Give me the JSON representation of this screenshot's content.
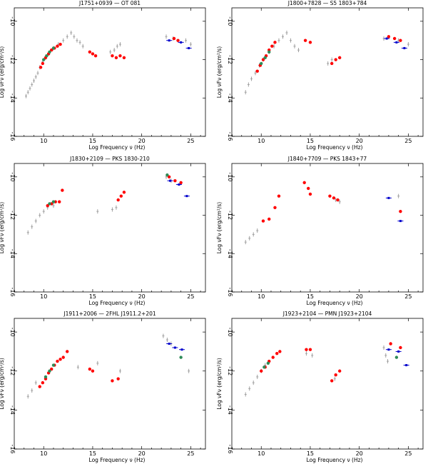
{
  "colors": {
    "gray": "#a0a0a0",
    "red": "#ff0000",
    "green": "#2e8b57",
    "blue": "#0000cc"
  },
  "chart_data": [
    {
      "type": "scatter",
      "title": "J1751+0939 — OT 081",
      "xlabel": "Log Frequency ν (Hz)",
      "ylabel": "Log νFν (erg/cm²/s)",
      "xlim": [
        7,
        26.5
      ],
      "ylim": [
        -16,
        -9.3
      ],
      "xticks": [
        10,
        15,
        20,
        25
      ],
      "yticks": [
        -10,
        -12,
        -14,
        -16
      ],
      "series": [
        {
          "name": "archival",
          "color": "#a0a0a0",
          "points": [
            [
              8.2,
              -13.9
            ],
            [
              8.4,
              -13.7
            ],
            [
              8.6,
              -13.5
            ],
            [
              8.8,
              -13.3
            ],
            [
              9.0,
              -13.1
            ],
            [
              9.2,
              -12.9
            ],
            [
              9.4,
              -12.7
            ],
            [
              9.6,
              -12.4
            ],
            [
              9.9,
              -12.1
            ],
            [
              10.2,
              -11.9
            ],
            [
              10.5,
              -11.7
            ],
            [
              11.0,
              -11.4
            ],
            [
              11.5,
              -11.2
            ],
            [
              12.0,
              -11.0
            ],
            [
              12.4,
              -10.8
            ],
            [
              12.8,
              -10.6
            ],
            [
              13.1,
              -10.8
            ],
            [
              13.4,
              -11.0
            ],
            [
              13.7,
              -11.1
            ],
            [
              14.0,
              -11.3
            ],
            [
              16.8,
              -11.6
            ],
            [
              17.2,
              -11.5
            ],
            [
              17.5,
              -11.3
            ],
            [
              17.8,
              -11.2
            ],
            [
              22.5,
              -10.8
            ],
            [
              23.2,
              -10.9
            ],
            [
              24.5,
              -11.0
            ],
            [
              25.0,
              -11.2
            ]
          ]
        },
        {
          "name": "red",
          "color": "#ff0000",
          "points": [
            [
              9.7,
              -12.4
            ],
            [
              9.9,
              -12.2
            ],
            [
              10.2,
              -11.9
            ],
            [
              10.5,
              -11.7
            ],
            [
              10.8,
              -11.5
            ],
            [
              11.1,
              -11.4
            ],
            [
              11.4,
              -11.3
            ],
            [
              11.7,
              -11.2
            ],
            [
              14.7,
              -11.6
            ],
            [
              15.0,
              -11.7
            ],
            [
              15.3,
              -11.8
            ],
            [
              17.0,
              -11.8
            ],
            [
              17.4,
              -11.9
            ],
            [
              17.8,
              -11.8
            ],
            [
              18.2,
              -11.9
            ],
            [
              23.3,
              -10.9
            ],
            [
              23.7,
              -11.0
            ]
          ]
        },
        {
          "name": "green",
          "color": "#2e8b57",
          "points": [
            [
              10.0,
              -12.0
            ],
            [
              10.3,
              -11.8
            ],
            [
              10.6,
              -11.6
            ],
            [
              11.0,
              -11.4
            ]
          ]
        },
        {
          "name": "blue",
          "color": "#0000cc",
          "points": [
            [
              22.8,
              -11.0
            ],
            [
              24.0,
              -11.1
            ],
            [
              24.8,
              -11.4
            ]
          ]
        }
      ]
    },
    {
      "type": "scatter",
      "title": "J1800+7828 — S5 1803+784",
      "xlabel": "Log Frequency ν (Hz)",
      "ylabel": "Log νFν (erg/cm²/s)",
      "xlim": [
        7,
        26.5
      ],
      "ylim": [
        -16,
        -9.3
      ],
      "xticks": [
        10,
        15,
        20,
        25
      ],
      "yticks": [
        -10,
        -12,
        -14,
        -16
      ],
      "series": [
        {
          "name": "archival",
          "color": "#a0a0a0",
          "points": [
            [
              8.4,
              -13.7
            ],
            [
              8.7,
              -13.3
            ],
            [
              9.0,
              -13.0
            ],
            [
              9.4,
              -12.7
            ],
            [
              9.8,
              -12.3
            ],
            [
              10.2,
              -12.0
            ],
            [
              10.8,
              -11.6
            ],
            [
              11.3,
              -11.3
            ],
            [
              11.8,
              -11.0
            ],
            [
              12.2,
              -10.8
            ],
            [
              12.6,
              -10.6
            ],
            [
              13.0,
              -11.0
            ],
            [
              13.4,
              -11.3
            ],
            [
              13.8,
              -11.5
            ],
            [
              16.8,
              -12.2
            ],
            [
              17.2,
              -12.0
            ],
            [
              22.5,
              -10.9
            ],
            [
              24.0,
              -11.0
            ],
            [
              25.0,
              -11.2
            ]
          ]
        },
        {
          "name": "red",
          "color": "#ff0000",
          "points": [
            [
              9.6,
              -12.6
            ],
            [
              9.9,
              -12.3
            ],
            [
              10.2,
              -12.0
            ],
            [
              10.5,
              -11.8
            ],
            [
              10.8,
              -11.5
            ],
            [
              11.1,
              -11.3
            ],
            [
              11.4,
              -11.1
            ],
            [
              14.5,
              -11.0
            ],
            [
              15.0,
              -11.1
            ],
            [
              17.2,
              -12.2
            ],
            [
              17.6,
              -12.0
            ],
            [
              18.0,
              -11.9
            ],
            [
              23.0,
              -10.8
            ],
            [
              23.6,
              -10.9
            ],
            [
              24.2,
              -11.0
            ]
          ]
        },
        {
          "name": "green",
          "color": "#2e8b57",
          "points": [
            [
              10.0,
              -12.2
            ],
            [
              10.4,
              -11.9
            ],
            [
              10.8,
              -11.6
            ]
          ]
        },
        {
          "name": "blue",
          "color": "#0000cc",
          "points": [
            [
              22.8,
              -10.9
            ],
            [
              23.8,
              -11.1
            ],
            [
              24.6,
              -11.4
            ]
          ]
        }
      ]
    },
    {
      "type": "scatter",
      "title": "J1830+2109 — PKS 1830-210",
      "xlabel": "Log Frequency ν (Hz)",
      "ylabel": "Log νFν (erg/cm²/s)",
      "xlim": [
        7,
        26.5
      ],
      "ylim": [
        -16,
        -9.3
      ],
      "xticks": [
        10,
        15,
        20,
        25
      ],
      "yticks": [
        -10,
        -12,
        -14,
        -16
      ],
      "series": [
        {
          "name": "archival",
          "color": "#a0a0a0",
          "points": [
            [
              8.4,
              -12.9
            ],
            [
              8.8,
              -12.6
            ],
            [
              9.2,
              -12.3
            ],
            [
              9.6,
              -12.0
            ],
            [
              10.0,
              -11.8
            ],
            [
              10.4,
              -11.6
            ],
            [
              11.0,
              -11.5
            ],
            [
              15.5,
              -11.8
            ],
            [
              17.0,
              -11.7
            ],
            [
              17.4,
              -11.6
            ],
            [
              22.5,
              -10.0
            ],
            [
              23.0,
              -10.2
            ]
          ]
        },
        {
          "name": "red",
          "color": "#ff0000",
          "points": [
            [
              10.4,
              -11.5
            ],
            [
              10.8,
              -11.4
            ],
            [
              11.2,
              -11.3
            ],
            [
              11.6,
              -11.3
            ],
            [
              11.9,
              -10.7
            ],
            [
              17.6,
              -11.2
            ],
            [
              17.9,
              -11.0
            ],
            [
              18.2,
              -10.8
            ],
            [
              22.8,
              -10.0
            ],
            [
              23.4,
              -10.2
            ],
            [
              24.0,
              -10.3
            ]
          ]
        },
        {
          "name": "green",
          "color": "#2e8b57",
          "points": [
            [
              10.6,
              -11.4
            ],
            [
              11.0,
              -11.3
            ],
            [
              22.6,
              -9.9
            ]
          ]
        },
        {
          "name": "blue",
          "color": "#0000cc",
          "points": [
            [
              22.9,
              -10.2
            ],
            [
              23.8,
              -10.4
            ],
            [
              24.6,
              -11.0
            ]
          ]
        }
      ]
    },
    {
      "type": "scatter",
      "title": "J1840+7709 — PKS 1843+77",
      "xlabel": "Log Frequency ν (Hz)",
      "ylabel": "Log νFν (erg/cm²/s)",
      "xlim": [
        7,
        26.5
      ],
      "ylim": [
        -16,
        -9.3
      ],
      "xticks": [
        10,
        15,
        20,
        25
      ],
      "yticks": [
        -10,
        -12,
        -14,
        -16
      ],
      "series": [
        {
          "name": "archival",
          "color": "#a0a0a0",
          "points": [
            [
              8.4,
              -13.4
            ],
            [
              8.8,
              -13.2
            ],
            [
              9.2,
              -13.0
            ],
            [
              9.6,
              -12.8
            ],
            [
              17.6,
              -11.2
            ],
            [
              18.0,
              -11.3
            ],
            [
              24.0,
              -11.0
            ]
          ]
        },
        {
          "name": "red",
          "color": "#ff0000",
          "points": [
            [
              10.2,
              -12.3
            ],
            [
              10.8,
              -12.2
            ],
            [
              11.4,
              -11.6
            ],
            [
              11.8,
              -11.0
            ],
            [
              14.4,
              -10.3
            ],
            [
              14.8,
              -10.6
            ],
            [
              15.0,
              -10.9
            ],
            [
              17.0,
              -11.0
            ],
            [
              17.4,
              -11.1
            ],
            [
              17.8,
              -11.2
            ],
            [
              24.2,
              -11.8
            ]
          ]
        },
        {
          "name": "green",
          "color": "#2e8b57",
          "points": []
        },
        {
          "name": "blue",
          "color": "#0000cc",
          "points": [
            [
              23.0,
              -11.1
            ],
            [
              24.2,
              -12.3
            ]
          ]
        }
      ]
    },
    {
      "type": "scatter",
      "title": "J1911+2006 — 2FHL J1911.2+201",
      "xlabel": "Log Frequency ν (Hz)",
      "ylabel": "Log νFν (erg/cm²/s)",
      "xlim": [
        7,
        26.5
      ],
      "ylim": [
        -16,
        -9.3
      ],
      "xticks": [
        10,
        15,
        20,
        25
      ],
      "yticks": [
        -10,
        -12,
        -14,
        -16
      ],
      "series": [
        {
          "name": "archival",
          "color": "#a0a0a0",
          "points": [
            [
              8.4,
              -13.3
            ],
            [
              8.8,
              -13.0
            ],
            [
              9.2,
              -12.6
            ],
            [
              13.5,
              -11.8
            ],
            [
              15.5,
              -11.6
            ],
            [
              17.8,
              -12.0
            ],
            [
              22.2,
              -10.2
            ],
            [
              22.6,
              -10.4
            ],
            [
              23.0,
              -10.6
            ],
            [
              24.8,
              -12.0
            ]
          ]
        },
        {
          "name": "red",
          "color": "#ff0000",
          "points": [
            [
              9.6,
              -12.8
            ],
            [
              9.9,
              -12.6
            ],
            [
              10.2,
              -12.4
            ],
            [
              10.5,
              -12.1
            ],
            [
              10.8,
              -11.9
            ],
            [
              11.1,
              -11.7
            ],
            [
              11.4,
              -11.5
            ],
            [
              11.7,
              -11.4
            ],
            [
              12.0,
              -11.3
            ],
            [
              12.4,
              -11.0
            ],
            [
              14.7,
              -11.9
            ],
            [
              15.0,
              -12.0
            ],
            [
              17.0,
              -12.5
            ],
            [
              17.6,
              -12.4
            ]
          ]
        },
        {
          "name": "green",
          "color": "#2e8b57",
          "points": [
            [
              10.2,
              -12.3
            ],
            [
              10.6,
              -12.0
            ],
            [
              11.0,
              -11.7
            ],
            [
              24.0,
              -11.3
            ]
          ]
        },
        {
          "name": "blue",
          "color": "#0000cc",
          "points": [
            [
              22.8,
              -10.6
            ],
            [
              23.4,
              -10.8
            ],
            [
              24.1,
              -10.9
            ]
          ]
        }
      ]
    },
    {
      "type": "scatter",
      "title": "J1923+2104 — PMN J1923+2104",
      "xlabel": "Log Frequency ν (Hz)",
      "ylabel": "Log νFν (erg/cm²/s)",
      "xlim": [
        7,
        26.5
      ],
      "ylim": [
        -16,
        -9.3
      ],
      "xticks": [
        10,
        15,
        20,
        25
      ],
      "yticks": [
        -10,
        -12,
        -14,
        -16
      ],
      "series": [
        {
          "name": "archival",
          "color": "#a0a0a0",
          "points": [
            [
              8.4,
              -13.2
            ],
            [
              8.8,
              -12.9
            ],
            [
              9.2,
              -12.6
            ],
            [
              9.6,
              -12.3
            ],
            [
              10.0,
              -12.0
            ],
            [
              10.4,
              -11.7
            ],
            [
              14.6,
              -11.1
            ],
            [
              15.2,
              -11.2
            ],
            [
              17.5,
              -12.4
            ],
            [
              22.5,
              -10.8
            ],
            [
              22.7,
              -11.2
            ],
            [
              22.9,
              -11.5
            ]
          ]
        },
        {
          "name": "red",
          "color": "#ff0000",
          "points": [
            [
              10.0,
              -12.0
            ],
            [
              10.4,
              -11.8
            ],
            [
              10.8,
              -11.5
            ],
            [
              11.2,
              -11.3
            ],
            [
              11.6,
              -11.1
            ],
            [
              11.9,
              -11.0
            ],
            [
              14.6,
              -10.9
            ],
            [
              15.0,
              -10.9
            ],
            [
              17.2,
              -12.5
            ],
            [
              17.6,
              -12.2
            ],
            [
              18.0,
              -12.0
            ],
            [
              23.2,
              -10.6
            ],
            [
              24.2,
              -10.8
            ]
          ]
        },
        {
          "name": "green",
          "color": "#2e8b57",
          "points": [
            [
              10.3,
              -11.8
            ],
            [
              10.7,
              -11.6
            ],
            [
              23.8,
              -11.3
            ]
          ]
        },
        {
          "name": "blue",
          "color": "#0000cc",
          "points": [
            [
              23.0,
              -10.9
            ],
            [
              24.0,
              -11.0
            ],
            [
              24.8,
              -11.7
            ]
          ]
        }
      ]
    }
  ]
}
